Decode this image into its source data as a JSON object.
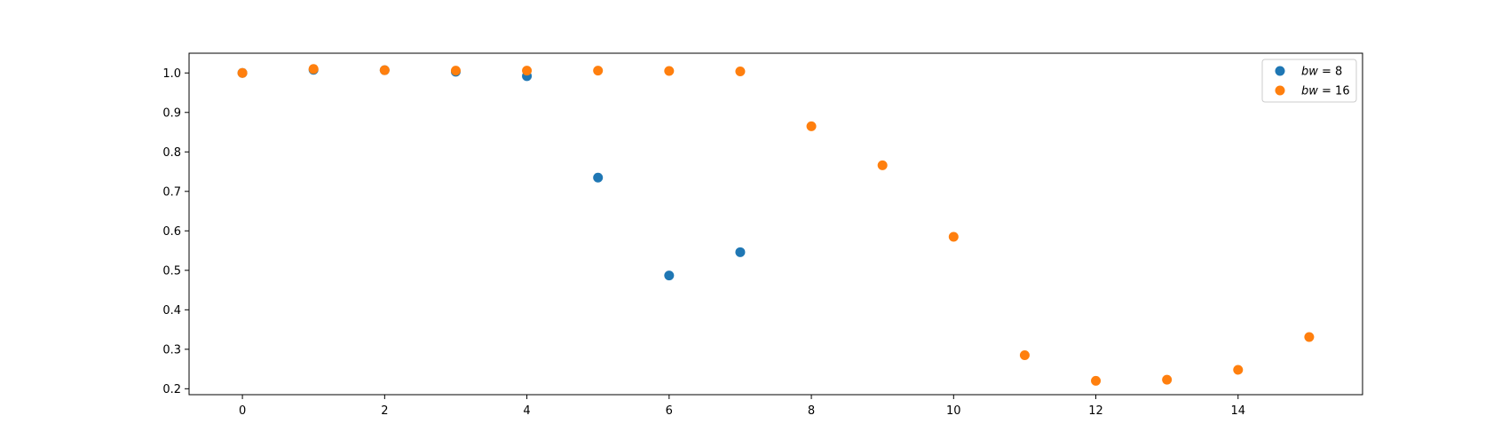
{
  "chart_data": {
    "type": "scatter",
    "title": "",
    "xlabel": "",
    "ylabel": "",
    "xlim": [
      -0.75,
      15.75
    ],
    "ylim": [
      0.185,
      1.05
    ],
    "grid": false,
    "legend_placement": "top-right",
    "x_ticks": [
      0,
      2,
      4,
      6,
      8,
      10,
      12,
      14
    ],
    "x_tick_labels": [
      "0",
      "2",
      "4",
      "6",
      "8",
      "10",
      "12",
      "14"
    ],
    "y_ticks": [
      0.2,
      0.3,
      0.4,
      0.5,
      0.6,
      0.7,
      0.8,
      0.9,
      1.0
    ],
    "y_tick_labels": [
      "0.2",
      "0.3",
      "0.4",
      "0.5",
      "0.6",
      "0.7",
      "0.8",
      "0.9",
      "1.0"
    ],
    "series": [
      {
        "name": "bw = 8",
        "label_var": "bw",
        "label_value": " = 8",
        "color": "#1f77b4",
        "x": [
          0,
          1,
          2,
          3,
          4,
          5,
          6,
          7
        ],
        "y": [
          1.0,
          1.008,
          1.007,
          1.003,
          0.992,
          0.735,
          0.487,
          0.546
        ]
      },
      {
        "name": "bw = 16",
        "label_var": "bw",
        "label_value": " = 16",
        "color": "#ff7f0e",
        "x": [
          0,
          1,
          2,
          3,
          4,
          5,
          6,
          7,
          8,
          9,
          10,
          11,
          12,
          13,
          14,
          15
        ],
        "y": [
          1.0,
          1.01,
          1.007,
          1.006,
          1.006,
          1.006,
          1.005,
          1.004,
          0.865,
          0.766,
          0.585,
          0.285,
          0.22,
          0.223,
          0.248,
          0.331
        ]
      }
    ]
  }
}
